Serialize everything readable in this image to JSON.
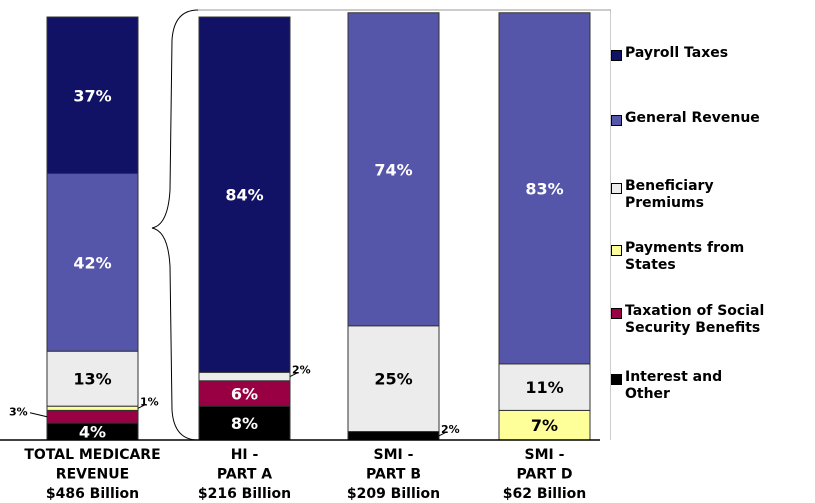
{
  "chart_data": {
    "type": "bar",
    "stacked": true,
    "percent_stacked": true,
    "categories": [
      [
        "TOTAL MEDICARE",
        "REVENUE",
        "$486 Billion"
      ],
      [
        "HI -",
        "PART A",
        "$216 Billion"
      ],
      [
        "SMI -",
        "PART B",
        "$209 Billion"
      ],
      [
        "SMI -",
        "PART D",
        "$62 Billion"
      ]
    ],
    "series": [
      {
        "name": "Interest and Other",
        "color": "#000000",
        "values": [
          4,
          8,
          2,
          0
        ],
        "labels": [
          "4%",
          "8%",
          "2%",
          ""
        ]
      },
      {
        "name": "Taxation of Social Security Benefits",
        "color": "#990044",
        "values": [
          3,
          6,
          0,
          0
        ],
        "labels": [
          "3%",
          "6%",
          "",
          ""
        ]
      },
      {
        "name": "Payments from States",
        "color": "#ffff99",
        "values": [
          1,
          0,
          0,
          7
        ],
        "labels": [
          "1%",
          "",
          "",
          "7%"
        ]
      },
      {
        "name": "Beneficiary Premiums",
        "color": "#ececec",
        "values": [
          13,
          2,
          25,
          11
        ],
        "labels": [
          "13%",
          "2%",
          "25%",
          "11%"
        ]
      },
      {
        "name": "General Revenue",
        "color": "#5555aa",
        "values": [
          42,
          0,
          74,
          83
        ],
        "labels": [
          "42%",
          "",
          "74%",
          "83%"
        ]
      },
      {
        "name": "Payroll Taxes",
        "color": "#111166",
        "values": [
          37,
          84,
          0,
          0
        ],
        "labels": [
          "37%",
          "84%",
          "",
          ""
        ]
      }
    ],
    "legend_order": [
      "Payroll Taxes",
      "General Revenue",
      "Beneficiary Premiums",
      "Payments from States",
      "Taxation of Social Security Benefits",
      "Interest and Other"
    ],
    "legend_placement": "right",
    "ylim": [
      0,
      100
    ],
    "grid": false,
    "title": "",
    "xlabel": "",
    "ylabel": ""
  },
  "legend": [
    {
      "lines": [
        "Payroll Taxes"
      ],
      "color": "#111166"
    },
    {
      "lines": [
        "General Revenue"
      ],
      "color": "#5555aa"
    },
    {
      "lines": [
        "Beneficiary",
        "Premiums"
      ],
      "color": "#ececec"
    },
    {
      "lines": [
        "Payments from",
        "States"
      ],
      "color": "#ffff99"
    },
    {
      "lines": [
        "Taxation of Social",
        "Security Benefits"
      ],
      "color": "#990044"
    },
    {
      "lines": [
        "Interest and",
        "Other"
      ],
      "color": "#000000"
    }
  ]
}
